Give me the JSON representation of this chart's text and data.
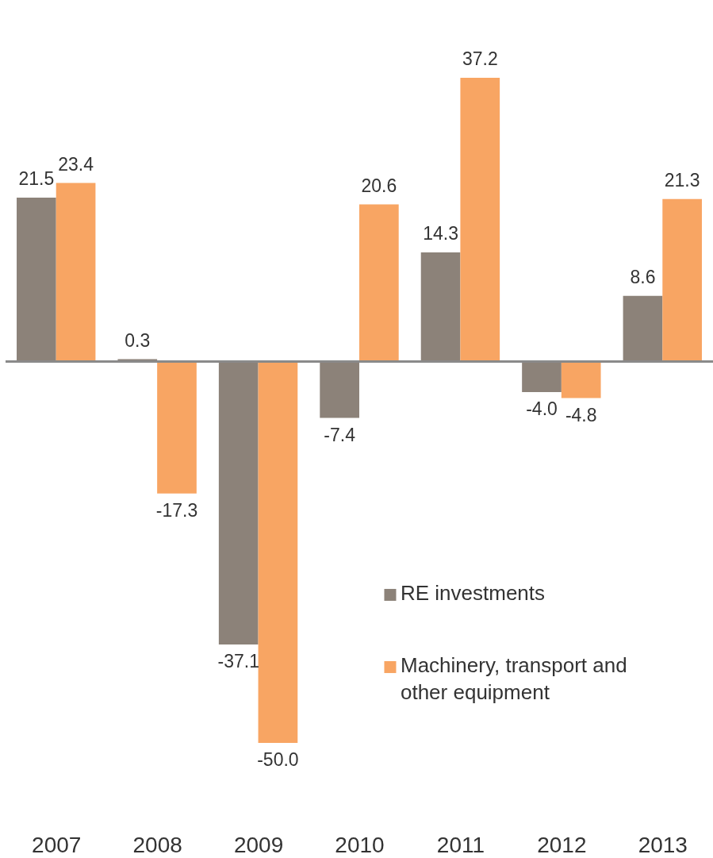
{
  "chart_data": {
    "type": "bar",
    "categories": [
      "2007",
      "2008",
      "2009",
      "2010",
      "2011",
      "2012",
      "2013"
    ],
    "series": [
      {
        "name": "RE investments",
        "color": "#8c8279",
        "values": [
          21.5,
          0.3,
          -37.1,
          -7.4,
          14.3,
          -4.0,
          8.6
        ],
        "value_labels": [
          "21.5",
          "0.3",
          "-37.1",
          "-7.4",
          "14.3",
          "-4.0",
          "8.6"
        ]
      },
      {
        "name": "Machinery, transport and other equipment",
        "color": "#f8a563",
        "values": [
          23.4,
          -17.3,
          -50.0,
          20.6,
          37.2,
          -4.8,
          21.3
        ],
        "value_labels": [
          "23.4",
          "-17.3",
          "-50.0",
          "20.6",
          "37.2",
          "-4.8",
          "21.3"
        ]
      }
    ],
    "legend": "bottom right",
    "tick_labels": "x"
  }
}
